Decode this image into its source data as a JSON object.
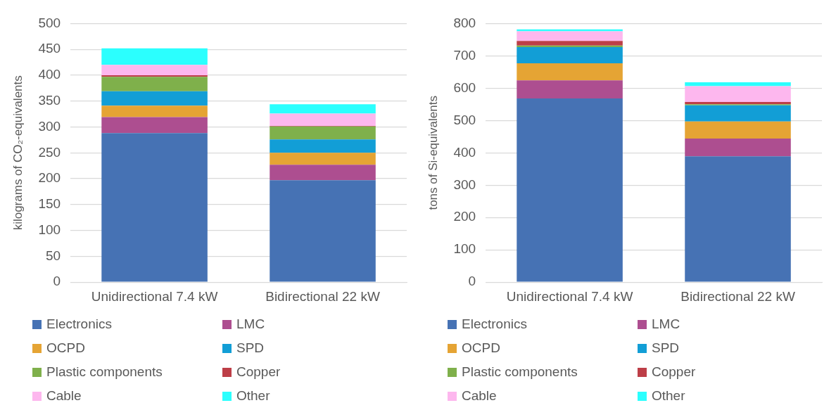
{
  "chart_data": [
    {
      "type": "bar",
      "ylabel": "kilograms of CO₂-equivalents",
      "categories": [
        "Unidirectional 7.4 kW",
        "Bidirectional 22 kW"
      ],
      "stacked": true,
      "ylim": [
        0,
        500
      ],
      "yticks": [
        0,
        50,
        100,
        150,
        200,
        250,
        300,
        350,
        400,
        450,
        500
      ],
      "grid": "y",
      "legend": "bottom",
      "series": [
        {
          "name": "Electronics",
          "color": "#4672b4",
          "values": [
            288,
            197
          ]
        },
        {
          "name": "LMC",
          "color": "#ad4e90",
          "values": [
            31,
            30
          ]
        },
        {
          "name": "OCPD",
          "color": "#e5a434",
          "values": [
            22,
            23
          ]
        },
        {
          "name": "SPD",
          "color": "#129ed6",
          "values": [
            28,
            26
          ]
        },
        {
          "name": "Plastic components",
          "color": "#7fb04b",
          "values": [
            28,
            25
          ]
        },
        {
          "name": "Copper",
          "color": "#bd3e47",
          "values": [
            3,
            1
          ]
        },
        {
          "name": "Cable",
          "color": "#fdb7ee",
          "values": [
            20,
            24
          ]
        },
        {
          "name": "Other",
          "color": "#2bfffe",
          "values": [
            32,
            18
          ]
        }
      ]
    },
    {
      "type": "bar",
      "ylabel": "tons of Si-equivalents",
      "categories": [
        "Unidirectional 7.4 kW",
        "Bidirectional 22 kW"
      ],
      "stacked": true,
      "ylim": [
        0,
        800
      ],
      "yticks": [
        0,
        100,
        200,
        300,
        400,
        500,
        600,
        700,
        800
      ],
      "grid": "y",
      "legend": "bottom",
      "series": [
        {
          "name": "Electronics",
          "color": "#4672b4",
          "values": [
            568,
            389
          ]
        },
        {
          "name": "LMC",
          "color": "#ad4e90",
          "values": [
            56,
            55
          ]
        },
        {
          "name": "OCPD",
          "color": "#e5a434",
          "values": [
            53,
            53
          ]
        },
        {
          "name": "SPD",
          "color": "#129ed6",
          "values": [
            50,
            50
          ]
        },
        {
          "name": "Plastic components",
          "color": "#7fb04b",
          "values": [
            5,
            3
          ]
        },
        {
          "name": "Copper",
          "color": "#bd3e47",
          "values": [
            14,
            7
          ]
        },
        {
          "name": "Cable",
          "color": "#fdb7ee",
          "values": [
            30,
            49
          ]
        },
        {
          "name": "Other",
          "color": "#2bfffe",
          "values": [
            6,
            12
          ]
        }
      ]
    }
  ]
}
